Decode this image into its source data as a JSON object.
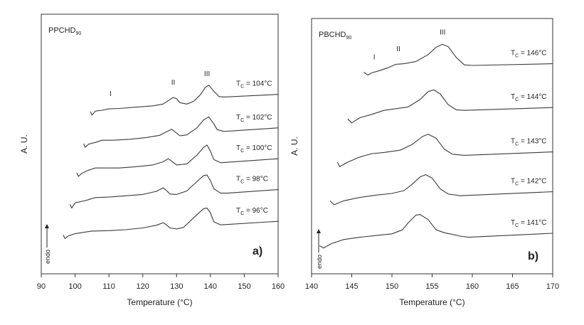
{
  "chart_data": [
    {
      "panel_id": "a",
      "type": "line",
      "panel_label": "a)",
      "sample": "PPCHD",
      "sample_sub": "90",
      "xlabel": "Temperature (°C)",
      "ylabel": "A. U.",
      "xlim": [
        90,
        160
      ],
      "xticks": [
        90,
        100,
        110,
        120,
        130,
        140,
        150,
        160
      ],
      "y_axis_ticks": false,
      "endo_label": "endo",
      "peaks": [
        {
          "label": "I",
          "x": 110.5
        },
        {
          "label": "II",
          "x": 129
        },
        {
          "label": "III",
          "x": 139
        }
      ],
      "series": [
        {
          "name": "T_C = 104°C",
          "tc_prefix": "T",
          "tc_sub": "C",
          "tc_value": " = 104°C",
          "x_start": 104.5,
          "x_end": 160,
          "points": [
            [
              104.5,
              253
            ],
            [
              105,
              261
            ],
            [
              106,
              252
            ],
            [
              108,
              250
            ],
            [
              110,
              247
            ],
            [
              113,
              246
            ],
            [
              118,
              243
            ],
            [
              123,
              240
            ],
            [
              126,
              236
            ],
            [
              128,
              226
            ],
            [
              129,
              221
            ],
            [
              130,
              224
            ],
            [
              131,
              233
            ],
            [
              133,
              236
            ],
            [
              135,
              230
            ],
            [
              137,
              215
            ],
            [
              138.5,
              198
            ],
            [
              139.5,
              193
            ],
            [
              141,
              207
            ],
            [
              142.5,
              219
            ],
            [
              144,
              220
            ],
            [
              160,
              214
            ]
          ]
        },
        {
          "name": "T_C = 102°C",
          "tc_prefix": "T",
          "tc_sub": "C",
          "tc_value": " = 102°C",
          "x_start": 102.5,
          "x_end": 160,
          "points": [
            [
              102.5,
              326
            ],
            [
              103,
              334
            ],
            [
              104,
              327
            ],
            [
              106,
              323
            ],
            [
              108,
              318
            ],
            [
              111,
              318
            ],
            [
              116,
              316
            ],
            [
              121,
              312
            ],
            [
              125,
              307
            ],
            [
              127,
              299
            ],
            [
              128.5,
              293
            ],
            [
              130,
              302
            ],
            [
              131,
              308
            ],
            [
              133,
              306
            ],
            [
              136,
              290
            ],
            [
              138,
              272
            ],
            [
              139.5,
              265
            ],
            [
              141,
              281
            ],
            [
              142,
              294
            ],
            [
              144,
              298
            ],
            [
              160,
              290
            ]
          ]
        },
        {
          "name": "T_C = 100°C",
          "tc_prefix": "T",
          "tc_sub": "C",
          "tc_value": " = 100°C",
          "x_start": 100.5,
          "x_end": 160,
          "points": [
            [
              100.5,
              392
            ],
            [
              101,
              400
            ],
            [
              102,
              393
            ],
            [
              104,
              386
            ],
            [
              106,
              381
            ],
            [
              108,
              381
            ],
            [
              113,
              381
            ],
            [
              118,
              378
            ],
            [
              123,
              374
            ],
            [
              126,
              367
            ],
            [
              127.5,
              360
            ],
            [
              129,
              368
            ],
            [
              130,
              374
            ],
            [
              133,
              372
            ],
            [
              136,
              352
            ],
            [
              138,
              334
            ],
            [
              139,
              329
            ],
            [
              140,
              343
            ],
            [
              141,
              362
            ],
            [
              143,
              369
            ],
            [
              160,
              360
            ]
          ]
        },
        {
          "name": "T_C = 98°C",
          "tc_prefix": "T",
          "tc_sub": "C",
          "tc_value": " = 98°C",
          "x_start": 98.5,
          "x_end": 160,
          "points": [
            [
              98.5,
              463
            ],
            [
              99,
              472
            ],
            [
              100,
              460
            ],
            [
              103,
              455
            ],
            [
              106,
              448
            ],
            [
              110,
              447
            ],
            [
              115,
              444
            ],
            [
              120,
              441
            ],
            [
              124,
              434
            ],
            [
              126,
              426
            ],
            [
              127,
              432
            ],
            [
              128,
              440
            ],
            [
              130,
              441
            ],
            [
              133,
              433
            ],
            [
              136,
              412
            ],
            [
              138,
              398
            ],
            [
              139,
              397
            ],
            [
              140,
              410
            ],
            [
              141,
              428
            ],
            [
              143,
              438
            ],
            [
              145,
              438
            ],
            [
              160,
              430
            ]
          ]
        },
        {
          "name": "T_C = 96°C",
          "tc_prefix": "T",
          "tc_sub": "C",
          "tc_value": " = 96°C",
          "x_start": 96.5,
          "x_end": 160,
          "points": [
            [
              96.5,
              533
            ],
            [
              97,
              541
            ],
            [
              98,
              535
            ],
            [
              100,
              530
            ],
            [
              105,
              524
            ],
            [
              110,
              523
            ],
            [
              115,
              521
            ],
            [
              120,
              517
            ],
            [
              124,
              511
            ],
            [
              126,
              505
            ],
            [
              127,
              510
            ],
            [
              128,
              517
            ],
            [
              130,
              519
            ],
            [
              132,
              516
            ],
            [
              135,
              494
            ],
            [
              138,
              473
            ],
            [
              139,
              472
            ],
            [
              140,
              483
            ],
            [
              141,
              503
            ],
            [
              143,
              510
            ],
            [
              160,
              502
            ]
          ]
        }
      ]
    },
    {
      "panel_id": "b",
      "type": "line",
      "panel_label": "b)",
      "sample": "PBCHD",
      "sample_sub": "90",
      "xlabel": "Temperature (°C)",
      "ylabel": "A. U.",
      "xlim": [
        140,
        170
      ],
      "xticks": [
        140,
        145,
        150,
        155,
        160,
        165,
        170
      ],
      "y_axis_ticks": false,
      "endo_label": "endo",
      "peaks": [
        {
          "label": "I",
          "x": 147.8
        },
        {
          "label": "II",
          "x": 150.8
        },
        {
          "label": "III",
          "x": 156.3
        }
      ],
      "series": [
        {
          "name": "T_C = 146°C",
          "tc_prefix": "T",
          "tc_sub": "C",
          "tc_value": " = 146°C",
          "x_start": 146.5,
          "x_end": 170,
          "points": [
            [
              146.5,
              127
            ],
            [
              147,
              132
            ],
            [
              147.5,
              128
            ],
            [
              148.5,
              124
            ],
            [
              149.5,
              119
            ],
            [
              150.5,
              113
            ],
            [
              151.5,
              112
            ],
            [
              153,
              108
            ],
            [
              154.5,
              96
            ],
            [
              155.5,
              83
            ],
            [
              156.3,
              78
            ],
            [
              157,
              82
            ],
            [
              158,
              101
            ],
            [
              159,
              114
            ],
            [
              160,
              115
            ],
            [
              170,
              112
            ]
          ]
        },
        {
          "name": "T_C = 144°C",
          "tc_prefix": "T",
          "tc_sub": "C",
          "tc_value": " = 144°C",
          "x_start": 144.5,
          "x_end": 170,
          "points": [
            [
              144.5,
              209
            ],
            [
              145,
              216
            ],
            [
              146,
              207
            ],
            [
              147.5,
              201
            ],
            [
              149,
              194
            ],
            [
              150.5,
              191
            ],
            [
              152,
              188
            ],
            [
              153.5,
              175
            ],
            [
              154.5,
              161
            ],
            [
              155.2,
              158
            ],
            [
              156,
              165
            ],
            [
              157,
              184
            ],
            [
              158,
              193
            ],
            [
              159,
              194
            ],
            [
              170,
              189
            ]
          ]
        },
        {
          "name": "T_C = 143°C",
          "tc_prefix": "T",
          "tc_sub": "C",
          "tc_value": " = 143°C",
          "x_start": 143.2,
          "x_end": 170,
          "points": [
            [
              143.2,
              285
            ],
            [
              143.5,
              293
            ],
            [
              144.5,
              285
            ],
            [
              146,
              276
            ],
            [
              147.5,
              270
            ],
            [
              149,
              268
            ],
            [
              151,
              264
            ],
            [
              152.5,
              254
            ],
            [
              153.8,
              240
            ],
            [
              154.5,
              236
            ],
            [
              155.5,
              243
            ],
            [
              156.5,
              262
            ],
            [
              157.5,
              271
            ],
            [
              159,
              273
            ],
            [
              170,
              267
            ]
          ]
        },
        {
          "name": "T_C = 142°C",
          "tc_prefix": "T",
          "tc_sub": "C",
          "tc_value": " = 142°C",
          "x_start": 142.3,
          "x_end": 170,
          "points": [
            [
              142.3,
              353
            ],
            [
              142.8,
              360
            ],
            [
              144,
              353
            ],
            [
              146,
              347
            ],
            [
              148,
              343
            ],
            [
              150,
              340
            ],
            [
              151.5,
              335
            ],
            [
              152.5,
              324
            ],
            [
              153.5,
              311
            ],
            [
              154.2,
              307
            ],
            [
              155,
              313
            ],
            [
              156,
              332
            ],
            [
              157,
              341
            ],
            [
              158.5,
              344
            ],
            [
              170,
              337
            ]
          ]
        },
        {
          "name": "T_C = 141°C",
          "tc_prefix": "T",
          "tc_sub": "C",
          "tc_value": " = 141°C",
          "x_start": 141,
          "x_end": 170,
          "points": [
            [
              141,
              432
            ],
            [
              141.5,
              436
            ],
            [
              142.5,
              428
            ],
            [
              144,
              421
            ],
            [
              146,
              417
            ],
            [
              148,
              414
            ],
            [
              150,
              411
            ],
            [
              151.3,
              404
            ],
            [
              152,
              392
            ],
            [
              153,
              378
            ],
            [
              153.5,
              377
            ],
            [
              154.5,
              386
            ],
            [
              155.5,
              404
            ],
            [
              156.5,
              409
            ],
            [
              157.5,
              412
            ],
            [
              158.5,
              415
            ],
            [
              159.5,
              417
            ],
            [
              170,
              410
            ]
          ]
        }
      ]
    }
  ]
}
